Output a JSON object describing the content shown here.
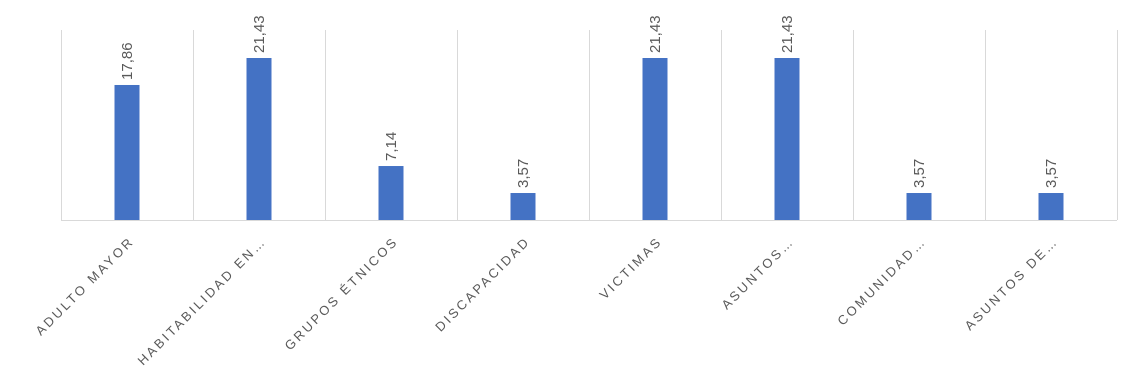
{
  "chart_data": {
    "type": "bar",
    "categories": [
      "ADULTO MAYOR",
      "HABITABILIDAD EN…",
      "GRUPOS ÉTNICOS",
      "DISCAPACIDAD",
      "VICTIMAS",
      "ASUNTOS…",
      "COMUNIDAD…",
      "ASUNTOS DE…"
    ],
    "values": [
      17.86,
      21.43,
      7.14,
      3.57,
      21.43,
      21.43,
      3.57,
      3.57
    ],
    "data_labels": [
      "17,86",
      "21,43",
      "7,14",
      "3,57",
      "21,43",
      "21,43",
      "3,57",
      "3,57"
    ],
    "title": "",
    "xlabel": "",
    "ylabel": "",
    "ylim": [
      0,
      21.43
    ],
    "grid": "vertical category separators",
    "legend": "none",
    "colors": {
      "bar": "#4472c4",
      "grid": "#d9d9d9",
      "text": "#595959"
    }
  }
}
